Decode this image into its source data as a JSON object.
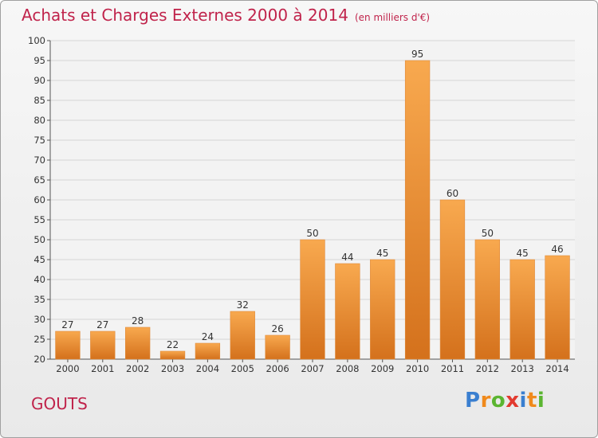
{
  "title": "Achats et Charges Externes 2000 à 2014",
  "subtitle": "(en milliers d'€)",
  "place": "GOUTS",
  "brand": {
    "letters": [
      "P",
      "r",
      "o",
      "x",
      "i",
      "t",
      "i"
    ],
    "colors": [
      "#3a7fd0",
      "#f08a1c",
      "#5bb531",
      "#e23a2f",
      "#3a7fd0",
      "#f08a1c",
      "#5bb531"
    ]
  },
  "colors": {
    "title": "#c0234b",
    "bar_light": "#f8a94f",
    "bar_dark": "#d4711c"
  },
  "chart_data": {
    "type": "bar",
    "categories": [
      "2000",
      "2001",
      "2002",
      "2003",
      "2004",
      "2005",
      "2006",
      "2007",
      "2008",
      "2009",
      "2010",
      "2011",
      "2012",
      "2013",
      "2014"
    ],
    "values": [
      27,
      27,
      28,
      22,
      24,
      32,
      26,
      50,
      44,
      45,
      95,
      60,
      50,
      45,
      46
    ],
    "ylim": [
      20,
      100
    ],
    "yticks": [
      20,
      25,
      30,
      35,
      40,
      45,
      50,
      55,
      60,
      65,
      70,
      75,
      80,
      85,
      90,
      95,
      100
    ],
    "grid": true,
    "title": "Achats et Charges Externes 2000 à 2014",
    "xlabel": "",
    "ylabel": ""
  }
}
